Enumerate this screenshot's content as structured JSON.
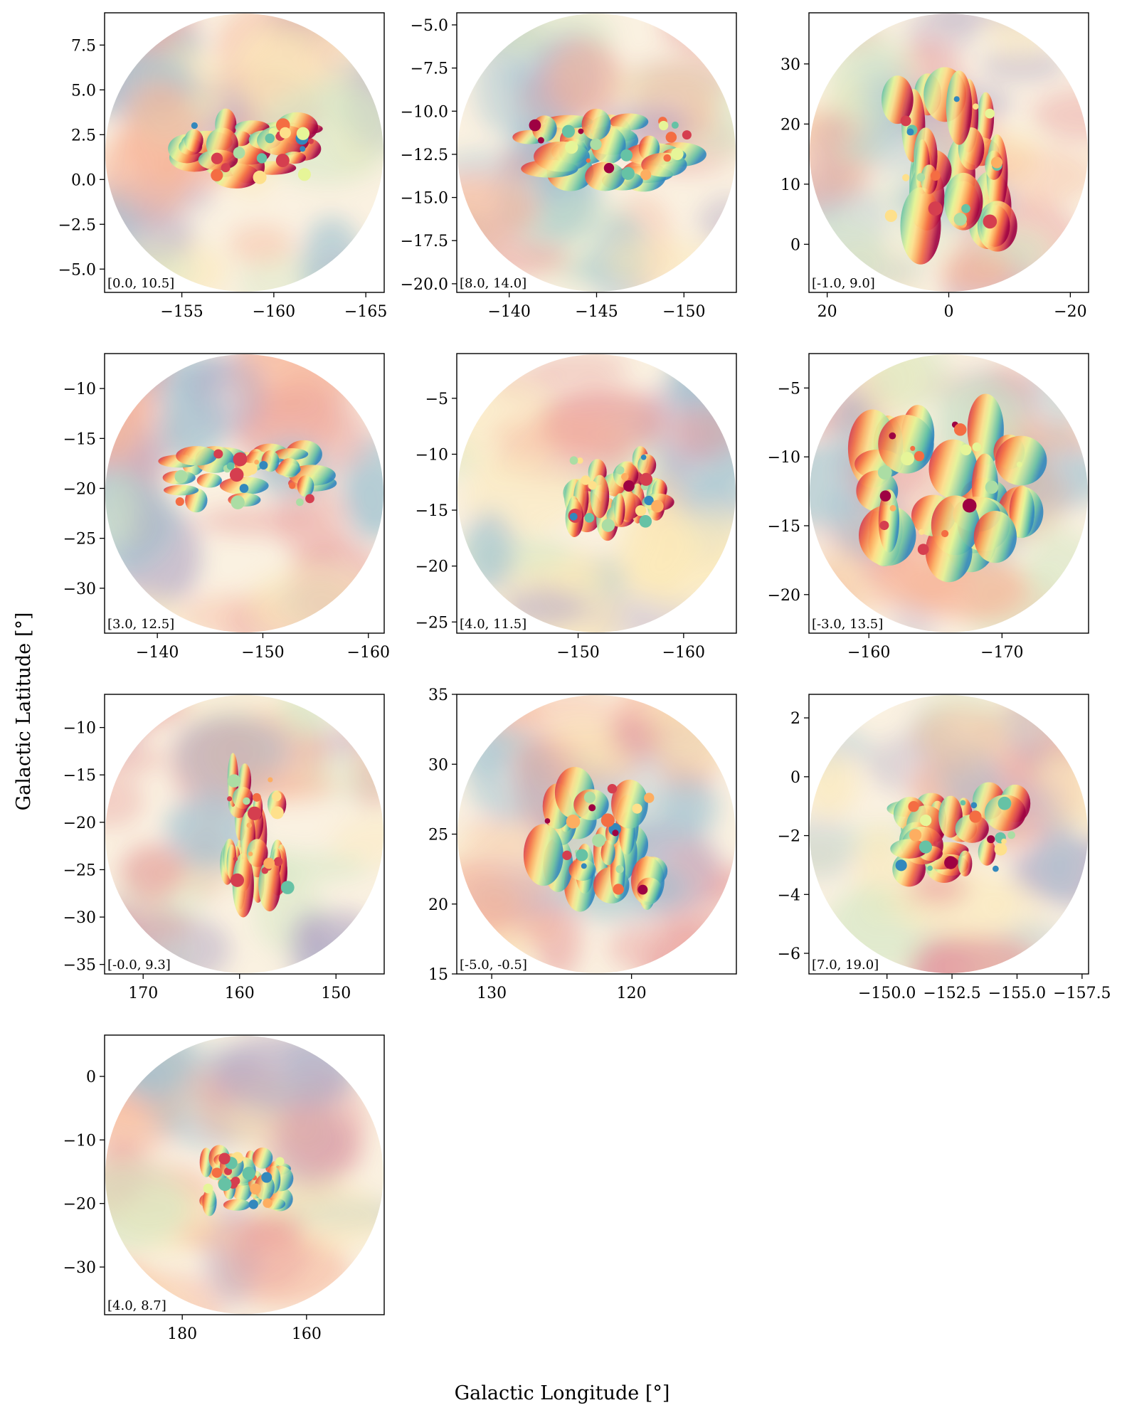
{
  "figure": {
    "xlabel": "Galactic Longitude [°]",
    "ylabel": "Galactic Latitude [°]"
  },
  "colormap": {
    "name": "Spectral_r",
    "stops": [
      "#3288bd",
      "#66c2a5",
      "#abdda4",
      "#e6f598",
      "#fee08b",
      "#fdae61",
      "#f46d43",
      "#d53e4f",
      "#9e0142"
    ],
    "low": "#5e4fa2",
    "background_opacity": 0.3
  },
  "chart_data": [
    {
      "type": "heatmap",
      "label": "[0.0, 10.5]",
      "xlim": [
        -150.8,
        -166.0
      ],
      "ylim": [
        -6.3,
        9.3
      ],
      "xticks": [
        -155,
        -160,
        -165
      ],
      "xticklabels": [
        "−155",
        "−160",
        "−165"
      ],
      "yticks": [
        -5.0,
        -2.5,
        0.0,
        2.5,
        5.0,
        7.5
      ],
      "yticklabels": [
        "−5.0",
        "−2.5",
        "0.0",
        "2.5",
        "5.0",
        "7.5"
      ],
      "cloud_center": [
        -159.0,
        1.8
      ],
      "cloud_extent": [
        -154.5,
        -162.5,
        0.0,
        3.3
      ]
    },
    {
      "type": "heatmap",
      "label": "[8.0, 14.0]",
      "xlim": [
        -137.0,
        -153.0
      ],
      "ylim": [
        -20.5,
        -4.3
      ],
      "xticks": [
        -140,
        -145,
        -150
      ],
      "xticklabels": [
        "−140",
        "−145",
        "−150"
      ],
      "yticks": [
        -20.0,
        -17.5,
        -15.0,
        -12.5,
        -10.0,
        -7.5,
        -5.0
      ],
      "yticklabels": [
        "−20.0",
        "−17.5",
        "−15.0",
        "−12.5",
        "−10.0",
        "−7.5",
        "−5.0"
      ],
      "cloud_center": [
        -145.0,
        -12.5
      ],
      "cloud_extent": [
        -141.0,
        -150.5,
        -14.2,
        -10.5
      ]
    },
    {
      "type": "heatmap",
      "label": "[-1.0, 9.0]",
      "xlim": [
        23.0,
        -23.0
      ],
      "ylim": [
        -8.0,
        38.5
      ],
      "xticks": [
        20,
        0,
        -20
      ],
      "xticklabels": [
        "20",
        "0",
        "−20"
      ],
      "yticks": [
        0,
        10,
        20,
        30
      ],
      "yticklabels": [
        "0",
        "10",
        "20",
        "30"
      ],
      "cloud_center": [
        0.0,
        13.0
      ],
      "cloud_extent": [
        11.0,
        -9.0,
        3.0,
        25.0
      ]
    },
    {
      "type": "heatmap",
      "label": "[3.0, 12.5]",
      "xlim": [
        -135.0,
        -161.5
      ],
      "ylim": [
        -34.5,
        -6.5
      ],
      "xticks": [
        -140,
        -150,
        -160
      ],
      "xticklabels": [
        "−140",
        "−150",
        "−160"
      ],
      "yticks": [
        -30,
        -25,
        -20,
        -15,
        -10
      ],
      "yticklabels": [
        "−30",
        "−25",
        "−20",
        "−15",
        "−10"
      ],
      "cloud_center": [
        -149.0,
        -18.5
      ],
      "cloud_extent": [
        -142.0,
        -155.0,
        -21.5,
        -16.5
      ]
    },
    {
      "type": "heatmap",
      "label": "[4.0, 11.5]",
      "xlim": [
        -138.5,
        -165.0
      ],
      "ylim": [
        -26.0,
        -1.0
      ],
      "xticks": [
        -150,
        -160
      ],
      "xticklabels": [
        "−150",
        "−160"
      ],
      "yticks": [
        -25,
        -20,
        -15,
        -10,
        -5
      ],
      "yticklabels": [
        "−25",
        "−20",
        "−15",
        "−10",
        "−5"
      ],
      "cloud_center": [
        -153.0,
        -12.0
      ],
      "cloud_extent": [
        -149.5,
        -158.0,
        -16.5,
        -10.0
      ]
    },
    {
      "type": "heatmap",
      "label": "[-3.0, 13.5]",
      "xlim": [
        -155.5,
        -176.5
      ],
      "ylim": [
        -22.8,
        -2.5
      ],
      "xticks": [
        -160,
        -170
      ],
      "xticklabels": [
        "−160",
        "−170"
      ],
      "yticks": [
        -20,
        -15,
        -10,
        -5
      ],
      "yticklabels": [
        "−20",
        "−15",
        "−10",
        "−5"
      ],
      "cloud_center": [
        -166.0,
        -12.0
      ],
      "cloud_extent": [
        -160.0,
        -172.0,
        -17.0,
        -7.5
      ]
    },
    {
      "type": "heatmap",
      "label": "[-0.0, 9.3]",
      "xlim": [
        174.0,
        145.0
      ],
      "ylim": [
        -36.0,
        -6.5
      ],
      "xticks": [
        170,
        160,
        150
      ],
      "xticklabels": [
        "170",
        "160",
        "150"
      ],
      "yticks": [
        -35,
        -30,
        -25,
        -20,
        -15,
        -10
      ],
      "yticklabels": [
        "−35",
        "−30",
        "−25",
        "−20",
        "−15",
        "−10"
      ],
      "cloud_center": [
        159.0,
        -21.5
      ],
      "cloud_extent": [
        161.5,
        155.0,
        -27.0,
        -15.5
      ]
    },
    {
      "type": "heatmap",
      "label": "[-5.0, -0.5]",
      "xlim": [
        132.5,
        112.5
      ],
      "ylim": [
        15.0,
        35.0
      ],
      "xticks": [
        130,
        120
      ],
      "xticklabels": [
        "130",
        "120"
      ],
      "yticks": [
        15,
        20,
        25,
        30,
        35
      ],
      "yticklabels": [
        "15",
        "20",
        "25",
        "30",
        "35"
      ],
      "cloud_center": [
        122.5,
        24.5
      ],
      "cloud_extent": [
        126.5,
        118.5,
        21.0,
        28.5
      ]
    },
    {
      "type": "heatmap",
      "label": "[7.0, 19.0]",
      "xlim": [
        -147.0,
        -157.75
      ],
      "ylim": [
        -6.7,
        2.8
      ],
      "xticks": [
        -150.0,
        -152.5,
        -155.0,
        -157.5
      ],
      "xticklabels": [
        "−150.0",
        "−152.5",
        "−155.0",
        "−157.5"
      ],
      "yticks": [
        -6,
        -4,
        -2,
        0,
        2
      ],
      "yticklabels": [
        "−6",
        "−4",
        "−2",
        "0",
        "2"
      ],
      "cloud_center": [
        -152.5,
        -2.0
      ],
      "cloud_extent": [
        -150.5,
        -155.0,
        -3.2,
        -0.8
      ]
    },
    {
      "type": "heatmap",
      "label": "[4.0, 8.7]",
      "xlim": [
        192.5,
        147.5
      ],
      "ylim": [
        -37.5,
        6.5
      ],
      "xticks": [
        180,
        160
      ],
      "xticklabels": [
        "180",
        "160"
      ],
      "yticks": [
        -30,
        -20,
        -10,
        0
      ],
      "yticklabels": [
        "−30",
        "−20",
        "−10",
        "0"
      ],
      "cloud_center": [
        172.0,
        -16.5
      ],
      "cloud_extent": [
        176.5,
        164.0,
        -20.5,
        -12.5
      ]
    }
  ]
}
